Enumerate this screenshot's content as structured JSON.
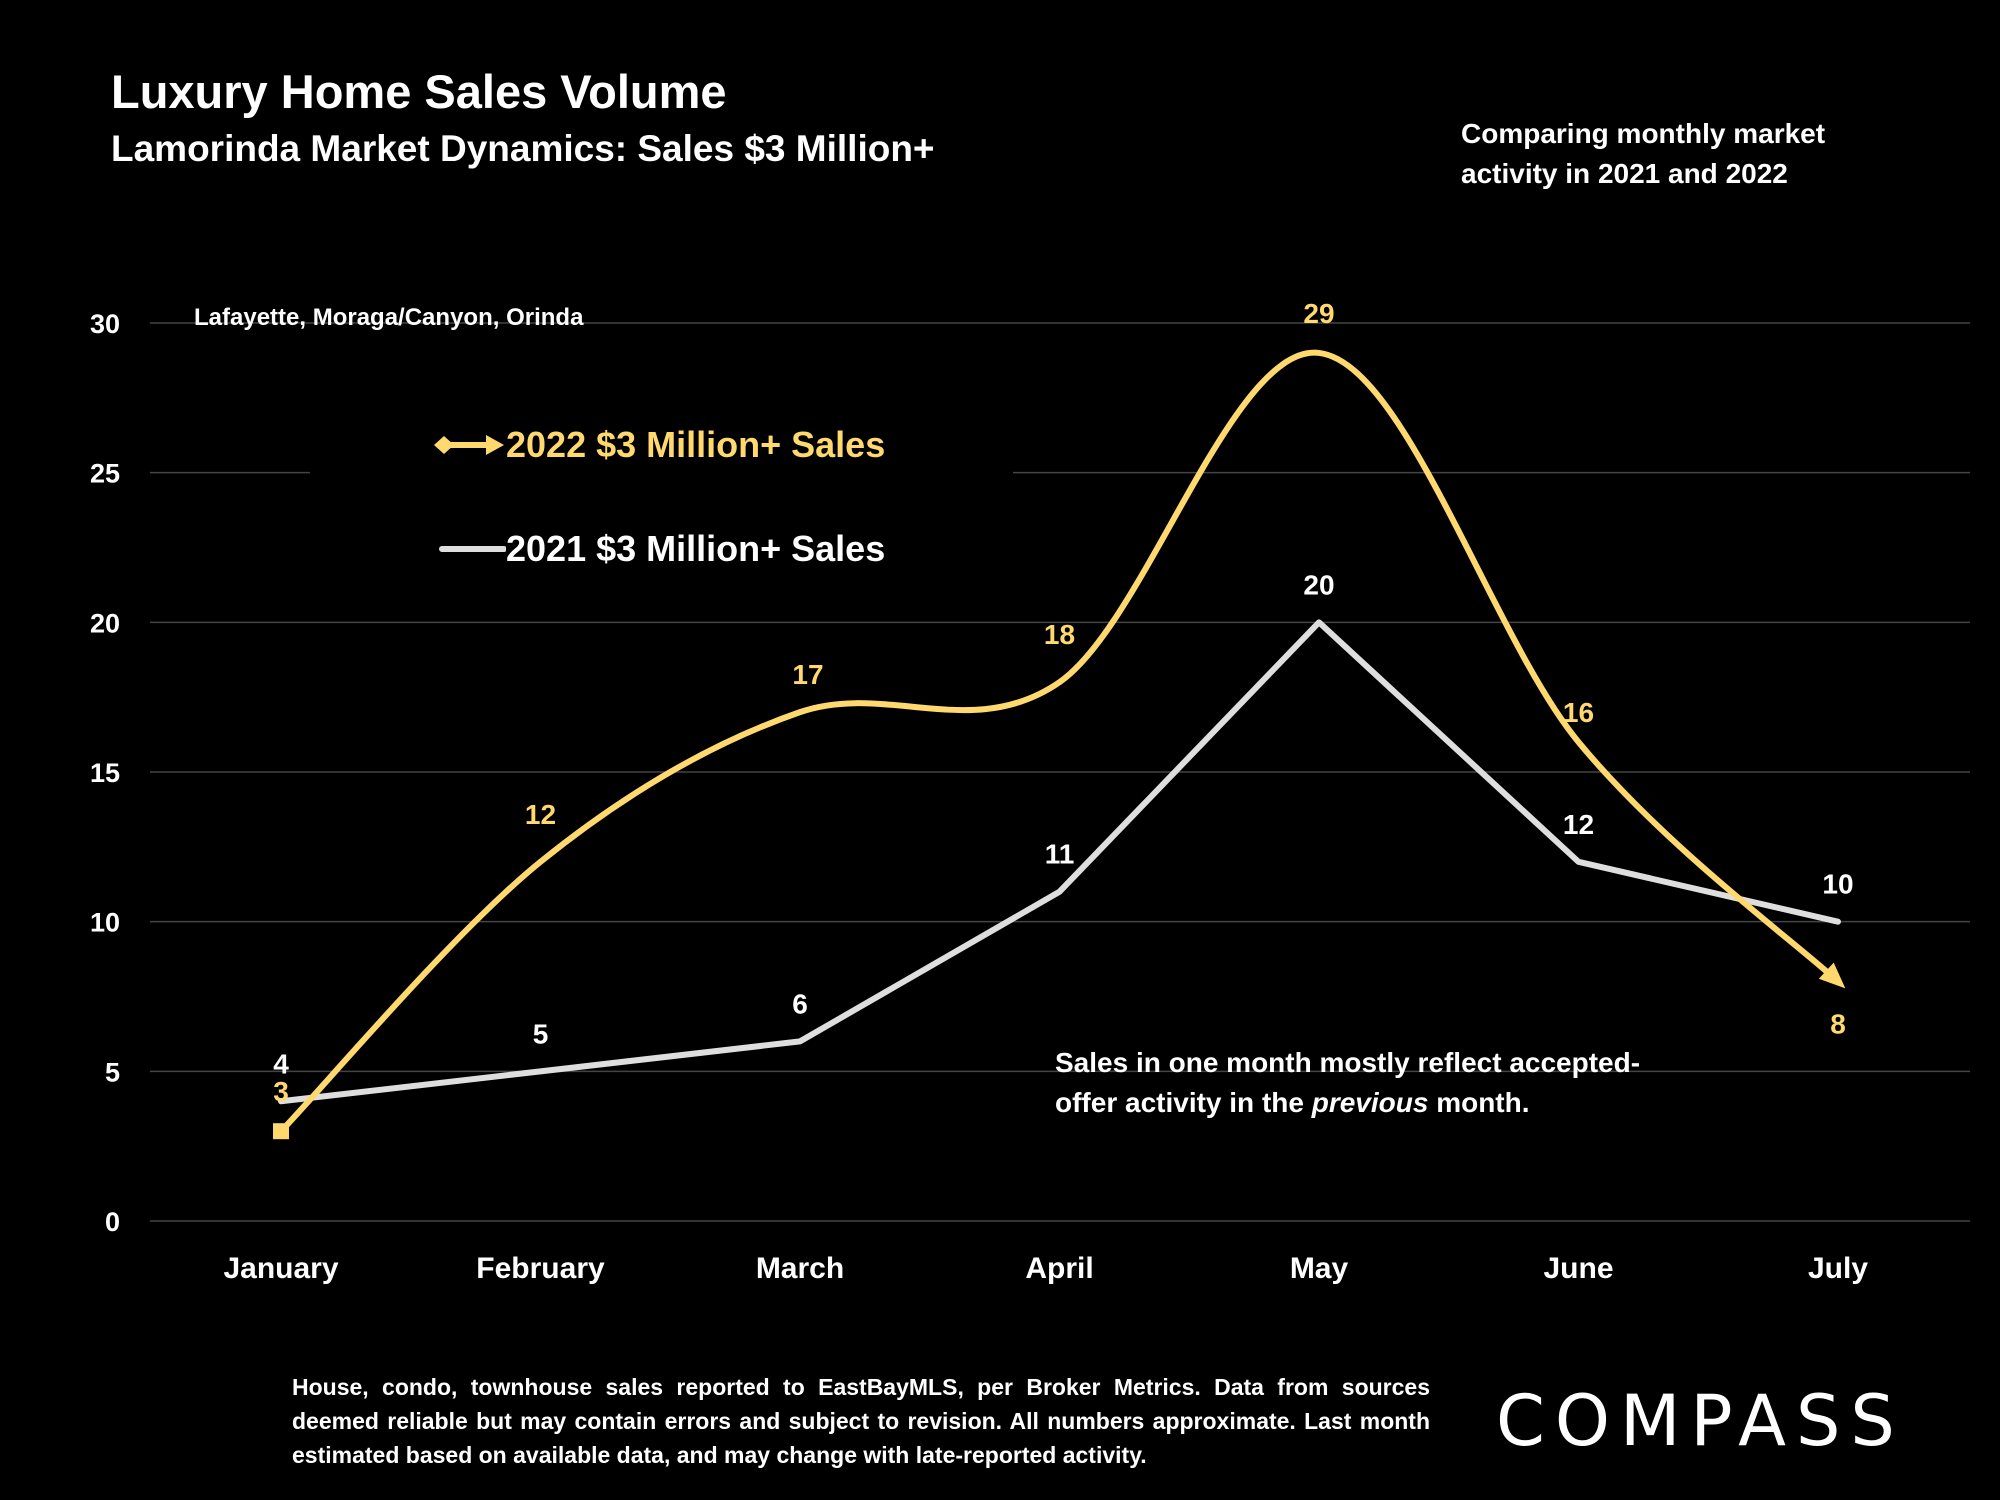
{
  "header": {
    "title": "Luxury Home Sales Volume",
    "subtitle": "Lamorinda Market Dynamics: Sales $3 Million+",
    "comparing_line1": "Comparing monthly market",
    "comparing_line2": "activity in 2021 and 2022"
  },
  "region_label": "Lafayette, Moraga/Canyon, Orinda",
  "note": {
    "part1": "Sales in one month mostly reflect accepted-offer activity in the ",
    "emphasis": "previous",
    "part2": " month."
  },
  "footer": "House, condo, townhouse sales reported to EastBayMLS, per Broker Metrics. Data from sources deemed reliable but may contain errors and subject to revision. All numbers approximate. Last month estimated based on available data, and may change with late-reported activity.",
  "logo": "COMPASS",
  "colors": {
    "background": "#000000",
    "series_2022": "#ffd86e",
    "series_2021": "#dedede",
    "gridline": "#444444",
    "text": "#ffffff"
  },
  "chart_data": {
    "type": "line",
    "title": "Luxury Home Sales Volume",
    "xlabel": "",
    "ylabel": "",
    "categories": [
      "January",
      "February",
      "March",
      "April",
      "May",
      "June",
      "July"
    ],
    "ylim": [
      0,
      30
    ],
    "yticks": [
      0,
      5,
      10,
      15,
      20,
      25,
      30
    ],
    "grid": true,
    "legend_position": "top-left",
    "series": [
      {
        "name": "2022 $3 Million+ Sales",
        "values": [
          3,
          12,
          17,
          18,
          29,
          16,
          8
        ],
        "color": "#ffd86e",
        "smooth": true
      },
      {
        "name": "2021 $3 Million+ Sales",
        "values": [
          4,
          5,
          6,
          11,
          20,
          12,
          10
        ],
        "color": "#dedede",
        "smooth": false
      }
    ]
  }
}
